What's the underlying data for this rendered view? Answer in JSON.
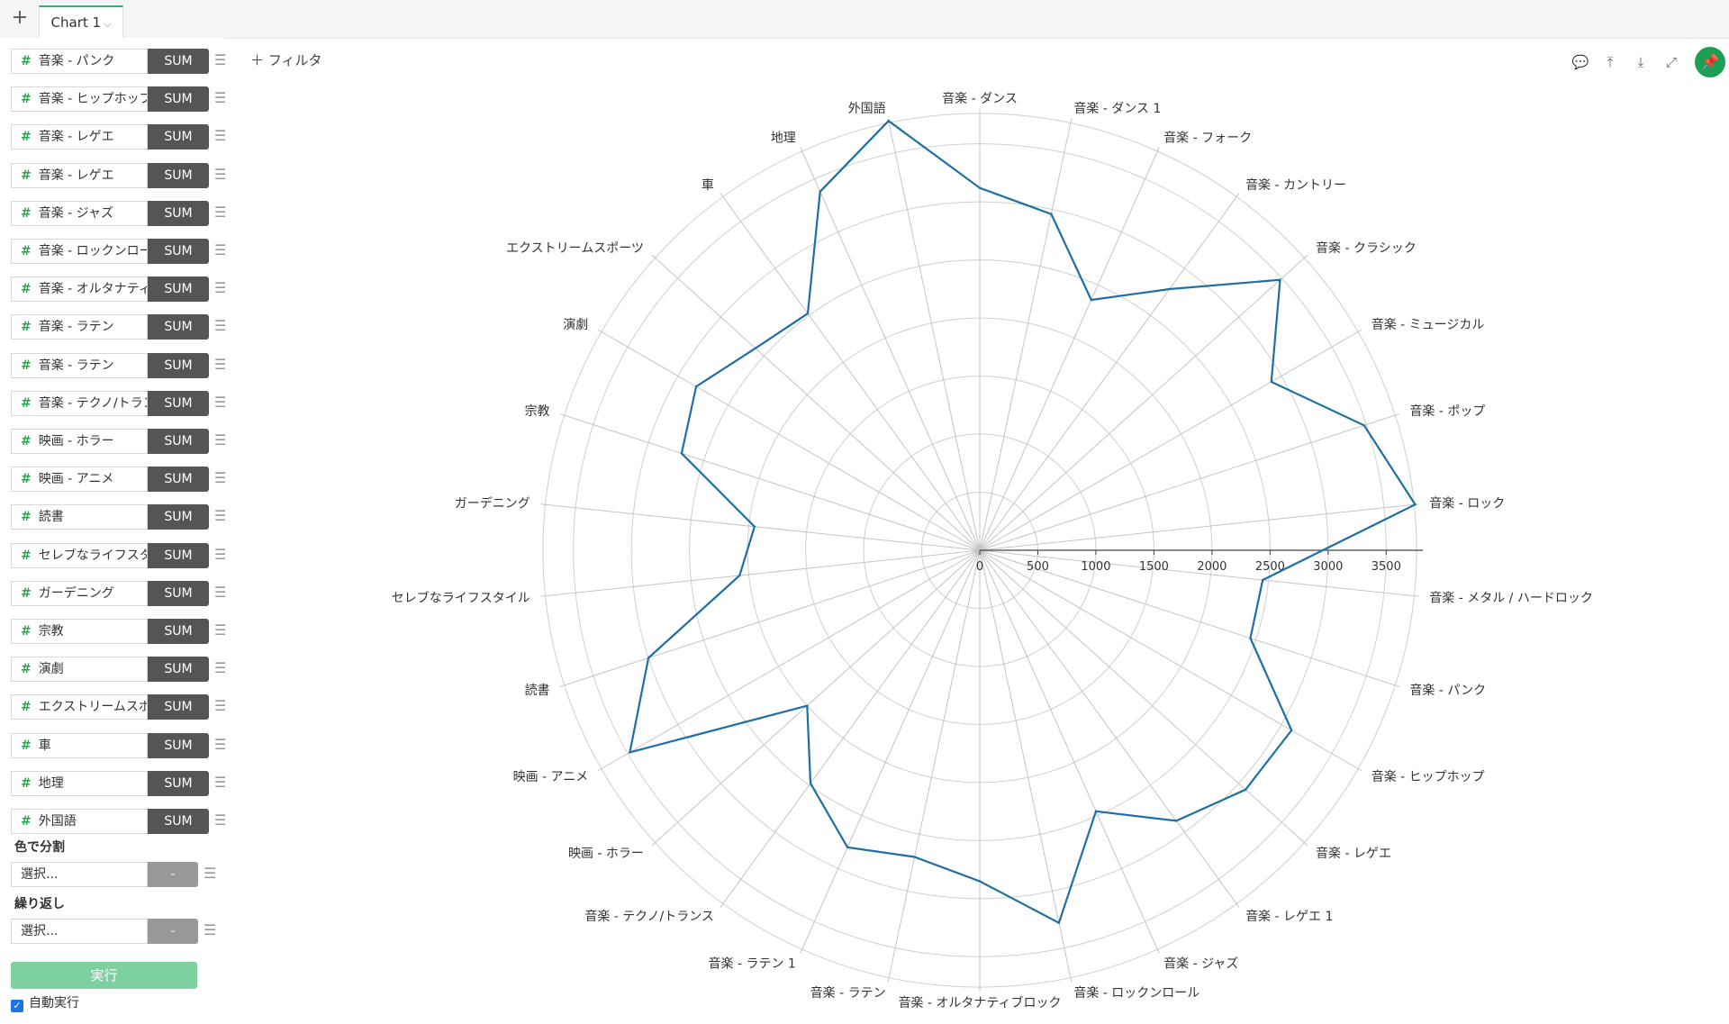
{
  "tab_bar": {
    "add_label": "+",
    "tab_label": "Chart 1",
    "tab_chevron": "⌵"
  },
  "sidebar": {
    "fields": [
      {
        "name": "音楽 - パンク",
        "agg": "SUM"
      },
      {
        "name": "音楽 - ヒップホップ",
        "agg": "SUM"
      },
      {
        "name": "音楽 - レゲエ",
        "agg": "SUM"
      },
      {
        "name": "音楽 - レゲエ",
        "agg": "SUM"
      },
      {
        "name": "音楽 - ジャズ",
        "agg": "SUM"
      },
      {
        "name": "音楽 - ロックンロール",
        "agg": "SUM"
      },
      {
        "name": "音楽 - オルタナティブ",
        "agg": "SUM"
      },
      {
        "name": "音楽 - ラテン",
        "agg": "SUM"
      },
      {
        "name": "音楽 - ラテン",
        "agg": "SUM"
      },
      {
        "name": "音楽 - テクノ/トランス",
        "agg": "SUM"
      },
      {
        "name": "映画 - ホラー",
        "agg": "SUM"
      },
      {
        "name": "映画 - アニメ",
        "agg": "SUM"
      },
      {
        "name": "読書",
        "agg": "SUM"
      },
      {
        "name": "セレブなライフスタイル",
        "agg": "SUM"
      },
      {
        "name": "ガーデニング",
        "agg": "SUM"
      },
      {
        "name": "宗教",
        "agg": "SUM"
      },
      {
        "name": "演劇",
        "agg": "SUM"
      },
      {
        "name": "エクストリームスポーツ",
        "agg": "SUM"
      },
      {
        "name": "車",
        "agg": "SUM"
      },
      {
        "name": "地理",
        "agg": "SUM"
      },
      {
        "name": "外国語",
        "agg": "SUM"
      }
    ],
    "color_split": {
      "label": "色で分割",
      "placeholder": "選択...",
      "button": "-"
    },
    "repeat": {
      "label": "繰り返し",
      "placeholder": "選択...",
      "button": "-"
    },
    "run_label": "実行",
    "auto_run_label": "自動実行",
    "auto_run_checked": true
  },
  "toolbar": {
    "filter_label": "フィルタ",
    "icons": [
      "comment-icon",
      "upload-icon",
      "download-icon",
      "expand-icon",
      "pin-icon"
    ]
  },
  "colors": {
    "series": "#1f6fa3",
    "accent": "#1f9d55",
    "sum_button": "#555555",
    "run_button": "#7dd0a0"
  },
  "chart_data": {
    "type": "radar",
    "axis_ticks": [
      0,
      500,
      1000,
      1500,
      2000,
      2500,
      3000,
      3500
    ],
    "rmax": 3800,
    "categories": [
      "音楽 - ダンス",
      "音楽 - ダンス 1",
      "音楽 - フォーク",
      "音楽 - カントリー",
      "音楽 - クラシック",
      "音楽 - ミュージカル",
      "音楽 - ポップ",
      "音楽 - ロック",
      "音楽 - メタル / ハードロック",
      "音楽 - パンク",
      "音楽 - ヒップホップ",
      "音楽 - レゲエ",
      "音楽 - レゲエ 1",
      "音楽 - ジャズ",
      "音楽 - ロックンロール",
      "音楽 - オルタナティブロック",
      "音楽 - ラテン",
      "音楽 - ラテン 1",
      "音楽 - テクノ/トランス",
      "映画 - ホラー",
      "映画 - アニメ",
      "読書",
      "セレブなライフスタイル",
      "ガーデニング",
      "宗教",
      "演劇",
      "エクストリームスポーツ",
      "車",
      "地理",
      "外国語"
    ],
    "values": [
      3120,
      2960,
      2360,
      2780,
      3480,
      2900,
      3480,
      3770,
      2450,
      2450,
      3100,
      3080,
      2880,
      2460,
      3280,
      2850,
      2700,
      2800,
      2480,
      2000,
      3480,
      3000,
      2080,
      1950,
      2700,
      2820,
      2600,
      2520,
      3380,
      3780
    ]
  }
}
